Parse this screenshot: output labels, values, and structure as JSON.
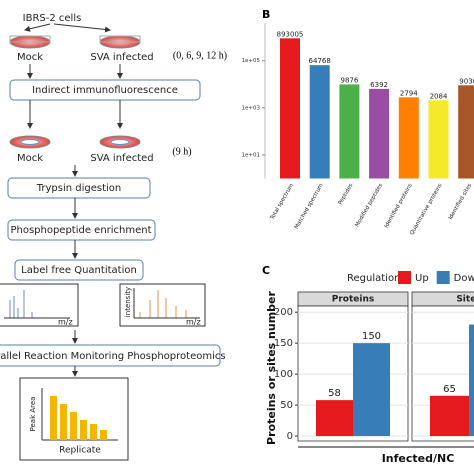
{
  "panel_labels": [
    "B",
    "C"
  ],
  "workflow": {
    "cell_line": "IBRS-2 cells",
    "mock": "Mock",
    "infected": "SVA infected",
    "times_1": "(0, 6, 9, 12 h)",
    "step_1": "Indirect immunofluorescence",
    "mock_2": "Mock",
    "infected_2": "SVA infected",
    "times_2": "(9 h)",
    "step_2": "Trypsin digestion",
    "step_3": "Phosphopeptide enrichment",
    "step_4": "Label free Quantitation",
    "spectrum_x": "m/z",
    "spectrum_y": "intensity",
    "spectrum_x_2": "m/z",
    "step_5": "Parallel Reaction Monitoring Phosphoproteomics",
    "prm_y": "Peak Area",
    "prm_x": "Replicate"
  },
  "chart_data": [
    {
      "type": "bar",
      "log_scale": true,
      "categories": [
        "Total spectrum",
        "Matched spectrum",
        "Peptides",
        "Modified peptides",
        "Identified proteins",
        "Quantitative proteins",
        "Identified sites"
      ],
      "values": [
        893005,
        64768,
        9876,
        6392,
        2794,
        2084,
        9030
      ],
      "colors": [
        "#e41a1c",
        "#377eb8",
        "#4daf4a",
        "#984ea3",
        "#ff7f00",
        "#f5ea2a",
        "#a65628"
      ],
      "ylim": [
        1,
        4000000
      ],
      "yticks": [
        {
          "value": 10,
          "label": "1e+01"
        },
        {
          "value": 1000,
          "label": "1e+03"
        },
        {
          "value": 100000,
          "label": "1e+05"
        }
      ]
    },
    {
      "type": "faceted_bar",
      "legend_title": "Regulation",
      "facets": [
        "Proteins",
        "Sites"
      ],
      "series": [
        {
          "name": "Up",
          "color": "#e41a1c",
          "values": [
            58,
            65
          ]
        },
        {
          "name": "Down",
          "color": "#377eb8",
          "values": [
            150,
            180
          ]
        }
      ],
      "ylabel": "Proteins or sites number",
      "xlabel": "Infected/NC",
      "ylim": [
        -8,
        210
      ],
      "yticks": [
        0,
        50,
        100,
        150,
        200
      ],
      "grid": true
    }
  ]
}
